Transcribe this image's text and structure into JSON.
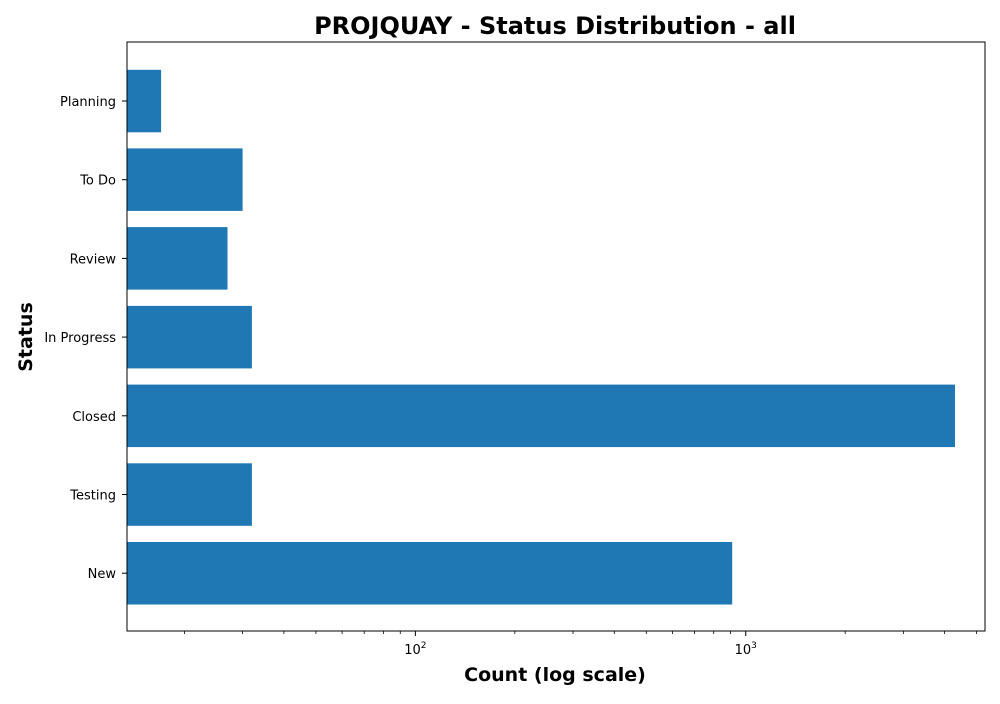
{
  "chart_data": {
    "type": "bar",
    "orientation": "horizontal",
    "title": "PROJQUAY - Status Distribution - all",
    "xlabel": "Count (log scale)",
    "ylabel": "Status",
    "xscale": "log",
    "xlim": [
      13.4,
      5300
    ],
    "xticks": [
      {
        "value": 100,
        "base": "10",
        "exponent": "2"
      },
      {
        "value": 1000,
        "base": "10",
        "exponent": "3"
      }
    ],
    "categories": [
      "Planning",
      "To Do",
      "Review",
      "In Progress",
      "Closed",
      "Testing",
      "New"
    ],
    "values": [
      17,
      30,
      27,
      32,
      4300,
      32,
      910
    ],
    "bar_color": "#1f77b4",
    "grid": false,
    "legend": "none"
  }
}
